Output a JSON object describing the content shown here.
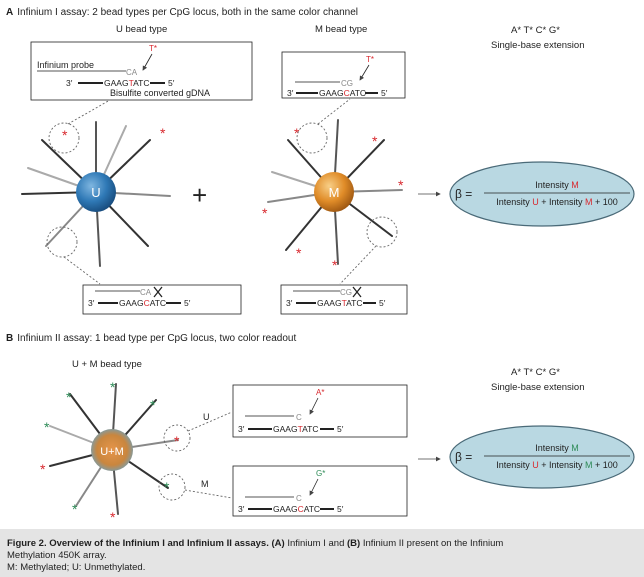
{
  "section_a": {
    "letter": "A",
    "title": "Infinium I assay: 2 bead types per CpG locus, both in the same color channel",
    "u_bead_type": "U bead type",
    "m_bead_type": "M bead type",
    "ext_bases": "A* T* C* G*",
    "ext_label": "Single-base extension",
    "probe_label": "Infinium probe",
    "gdna_label": "Bisulfite converted gDNA",
    "u_bead": "U",
    "m_bead": "M",
    "plus": "+",
    "beta_symbol": "β =",
    "beta_num": "Intensity M",
    "beta_den": "Intensity U + Intensity M + 100"
  },
  "section_b": {
    "letter": "B",
    "title": "Infinium II assay: 1 bead type per CpG locus, two color readout",
    "bead_type": "U + M bead type",
    "bead": "U+M",
    "u_label": "U",
    "m_label": "M",
    "ext_bases": "A* T* C* G*",
    "ext_label": "Single-base extension",
    "beta_symbol": "β =",
    "beta_num": "Intensity M",
    "beta_den": "Intensity U + Intensity M + 100"
  },
  "caption": {
    "fig_label": "Figure 2. Overview of the Infinium I and Infinium II assays.",
    "line1_rest": " Infinium I and ",
    "b_ref": "(B)",
    "a_ref": "(A)",
    "line1_end": " Infinium II present on the Infinium",
    "line2": "Methylation 450K array.",
    "line3": "M: Methylated; U: Unmethylated."
  },
  "colors": {
    "u_bead": "#2f79b6",
    "m_bead": "#e08c28",
    "methyl_red": "#d8282e",
    "green_star": "#2e8b57",
    "beta_ellipse": "#b9d8e2",
    "caption_bg": "#e4e4e4"
  }
}
